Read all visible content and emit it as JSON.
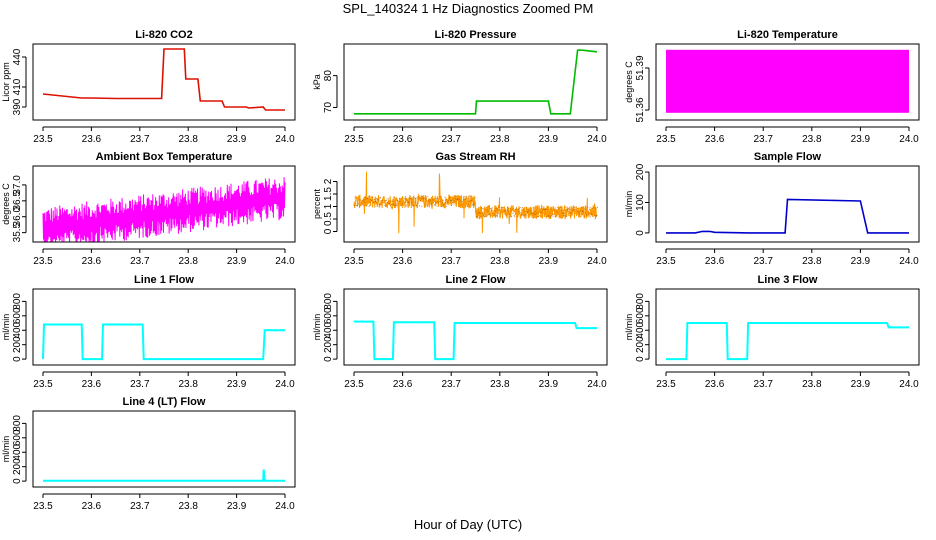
{
  "title": "SPL_140324  1 Hz Diagnostics Zoomed PM",
  "xlabel": "Hour of Day (UTC)",
  "chart_data": [
    {
      "type": "line",
      "title": "Li-820 CO2",
      "ylabel": "Licor ppm",
      "xlim": [
        23.5,
        24.0
      ],
      "ylim": [
        380,
        450
      ],
      "xticks": [
        "23.5",
        "23.6",
        "23.7",
        "23.8",
        "23.9",
        "24.0"
      ],
      "yticks": [
        390,
        410,
        440
      ],
      "color": "#dd1100",
      "series": [
        {
          "x": [
            23.5,
            23.56,
            23.58,
            23.6,
            23.65,
            23.7,
            23.745,
            23.75,
            23.792,
            23.795,
            23.82,
            23.825,
            23.87,
            23.875,
            23.92,
            23.925,
            23.955,
            23.96,
            24.0
          ],
          "y": [
            403,
            400,
            399,
            399,
            398.5,
            398.5,
            398.5,
            448,
            448,
            418,
            418,
            396,
            396,
            390,
            390,
            389,
            390,
            387,
            387
          ]
        }
      ]
    },
    {
      "type": "line",
      "title": "Li-820 Pressure",
      "ylabel": "kPa",
      "xlim": [
        23.5,
        24.0
      ],
      "ylim": [
        67,
        89
      ],
      "xticks": [
        "23.5",
        "23.6",
        "23.7",
        "23.8",
        "23.9",
        "24.0"
      ],
      "yticks": [
        70,
        80
      ],
      "color": "#00bb00",
      "series": [
        {
          "x": [
            23.5,
            23.75,
            23.752,
            23.9,
            23.905,
            23.945,
            23.96,
            23.97,
            24.0
          ],
          "y": [
            68,
            68,
            72,
            72,
            68,
            68,
            88,
            88,
            87.5
          ]
        }
      ]
    },
    {
      "type": "line",
      "title": "Li-820 Temperature",
      "ylabel": "degrees C",
      "xlim": [
        23.5,
        24.0
      ],
      "ylim": [
        51.355,
        51.405
      ],
      "xticks": [
        "23.5",
        "23.6",
        "23.7",
        "23.8",
        "23.9",
        "24.0"
      ],
      "yticks": [
        51.36,
        51.39
      ],
      "color": "#ff00ff",
      "fill_band": [
        51.358,
        51.403
      ],
      "series": [
        {
          "x": [
            23.5,
            24.0
          ],
          "y": [
            51.36,
            51.4
          ]
        }
      ]
    },
    {
      "type": "line",
      "title": "Ambient Box Temperature",
      "ylabel": "degrees C",
      "xlim": [
        23.5,
        24.0
      ],
      "ylim": [
        35.3,
        37.5
      ],
      "xticks": [
        "23.5",
        "23.6",
        "23.7",
        "23.8",
        "23.9",
        "24.0"
      ],
      "yticks": [
        35.5,
        36.0,
        36.5,
        37.0
      ],
      "color": "#ff00ff",
      "series": [
        {
          "x": [
            23.5,
            24.0
          ],
          "y": [
            35.6,
            36.6
          ]
        }
      ]
    },
    {
      "type": "line",
      "title": "Gas Stream RH",
      "ylabel": "percent",
      "xlim": [
        23.5,
        24.0
      ],
      "ylim": [
        -0.3,
        2.5
      ],
      "xticks": [
        "23.5",
        "23.6",
        "23.7",
        "23.8",
        "23.9",
        "24.0"
      ],
      "yticks": [
        0.0,
        0.5,
        1.0,
        1.5,
        2.0
      ],
      "color": "#ff9900",
      "series": [
        {
          "x": [
            23.5,
            23.75,
            23.76,
            24.0
          ],
          "y": [
            1.2,
            1.2,
            0.75,
            0.8
          ]
        }
      ]
    },
    {
      "type": "line",
      "title": "Sample Flow",
      "ylabel": "ml/min",
      "xlim": [
        23.5,
        24.0
      ],
      "ylim": [
        -20,
        210
      ],
      "xticks": [
        "23.5",
        "23.6",
        "23.7",
        "23.8",
        "23.9",
        "24.0"
      ],
      "yticks": [
        0,
        100,
        200
      ],
      "color": "#0000cc",
      "series": [
        {
          "x": [
            23.5,
            23.56,
            23.575,
            23.59,
            23.6,
            23.67,
            23.745,
            23.75,
            23.9,
            23.915,
            24.0
          ],
          "y": [
            0,
            0,
            5,
            5,
            2,
            0,
            0,
            110,
            105,
            0,
            0
          ]
        }
      ]
    },
    {
      "type": "line",
      "title": "Line 1 Flow",
      "ylabel": "ml/min",
      "xlim": [
        23.5,
        24.0
      ],
      "ylim": [
        -40,
        930
      ],
      "xticks": [
        "23.5",
        "23.6",
        "23.7",
        "23.8",
        "23.9",
        "24.0"
      ],
      "yticks": [
        0,
        200,
        400,
        600,
        800
      ],
      "color": "#00ffff",
      "series": [
        {
          "x": [
            23.5,
            23.502,
            23.58,
            23.582,
            23.622,
            23.624,
            23.706,
            23.708,
            23.955,
            23.958,
            24.0
          ],
          "y": [
            0,
            480,
            480,
            0,
            0,
            480,
            480,
            0,
            0,
            400,
            400
          ]
        }
      ]
    },
    {
      "type": "line",
      "title": "Line 2 Flow",
      "ylabel": "ml/min",
      "xlim": [
        23.5,
        24.0
      ],
      "ylim": [
        -40,
        930
      ],
      "xticks": [
        "23.5",
        "23.6",
        "23.7",
        "23.8",
        "23.9",
        "24.0"
      ],
      "yticks": [
        0,
        200,
        400,
        600,
        800
      ],
      "color": "#00ffff",
      "series": [
        {
          "x": [
            23.5,
            23.54,
            23.542,
            23.58,
            23.582,
            23.665,
            23.667,
            23.705,
            23.707,
            23.955,
            23.958,
            24.0
          ],
          "y": [
            520,
            520,
            0,
            0,
            510,
            510,
            0,
            0,
            500,
            500,
            430,
            430
          ]
        }
      ]
    },
    {
      "type": "line",
      "title": "Line 3 Flow",
      "ylabel": "ml/min",
      "xlim": [
        23.5,
        24.0
      ],
      "ylim": [
        -40,
        930
      ],
      "xticks": [
        "23.5",
        "23.6",
        "23.7",
        "23.8",
        "23.9",
        "24.0"
      ],
      "yticks": [
        0,
        200,
        400,
        600,
        800
      ],
      "color": "#00ffff",
      "series": [
        {
          "x": [
            23.5,
            23.502,
            23.542,
            23.544,
            23.625,
            23.627,
            23.667,
            23.669,
            23.955,
            23.958,
            24.0
          ],
          "y": [
            0,
            0,
            0,
            500,
            500,
            0,
            0,
            500,
            500,
            440,
            440
          ]
        }
      ]
    },
    {
      "type": "line",
      "title": "Line 4 (LT) Flow",
      "ylabel": "ml/min",
      "xlim": [
        23.5,
        24.0
      ],
      "ylim": [
        -40,
        930
      ],
      "xticks": [
        "23.5",
        "23.6",
        "23.7",
        "23.8",
        "23.9",
        "24.0"
      ],
      "yticks": [
        0,
        200,
        400,
        600,
        800
      ],
      "color": "#00ffff",
      "series": [
        {
          "x": [
            23.5,
            23.955,
            23.956,
            23.958,
            23.96,
            24.0
          ],
          "y": [
            5,
            5,
            160,
            5,
            5,
            5
          ]
        }
      ]
    }
  ]
}
